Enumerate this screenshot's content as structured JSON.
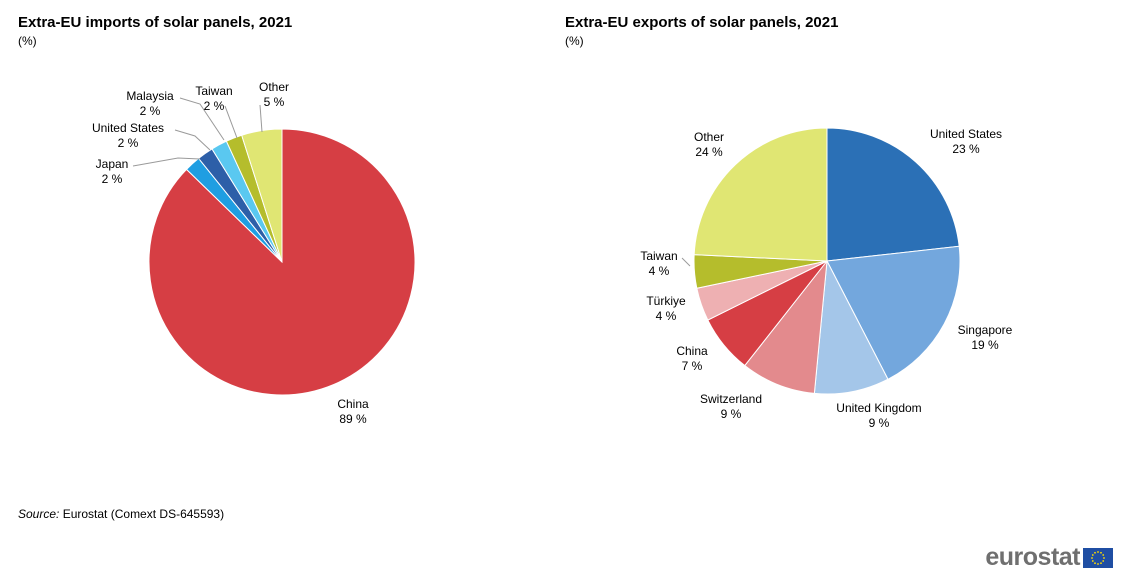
{
  "chart_data": [
    {
      "type": "pie",
      "title": "Extra-EU imports of solar panels, 2021",
      "unit": "(%)",
      "slices": [
        {
          "label": "China",
          "value": 89,
          "value_label": "89 %",
          "color": "#d63e44"
        },
        {
          "label": "Japan",
          "value": 2,
          "value_label": "2 %",
          "color": "#1f9ee2"
        },
        {
          "label": "United States",
          "value": 2,
          "value_label": "2 %",
          "color": "#2d5fa8"
        },
        {
          "label": "Malaysia",
          "value": 2,
          "value_label": "2 %",
          "color": "#5ac8f0"
        },
        {
          "label": "Taiwan",
          "value": 2,
          "value_label": "2 %",
          "color": "#b5bd2c"
        },
        {
          "label": "Other",
          "value": 5,
          "value_label": "5 %",
          "color": "#e0e673"
        }
      ]
    },
    {
      "type": "pie",
      "title": "Extra-EU exports of solar panels, 2021",
      "unit": "(%)",
      "slices": [
        {
          "label": "United States",
          "value": 23,
          "value_label": "23 %",
          "color": "#2b70b6"
        },
        {
          "label": "Singapore",
          "value": 19,
          "value_label": "19 %",
          "color": "#73a7dd"
        },
        {
          "label": "United Kingdom",
          "value": 9,
          "value_label": "9 %",
          "color": "#a4c6e9"
        },
        {
          "label": "Switzerland",
          "value": 9,
          "value_label": "9 %",
          "color": "#e38a8d"
        },
        {
          "label": "China",
          "value": 7,
          "value_label": "7 %",
          "color": "#d63e44"
        },
        {
          "label": "Türkiye",
          "value": 4,
          "value_label": "4 %",
          "color": "#eeb0b2"
        },
        {
          "label": "Taiwan",
          "value": 4,
          "value_label": "4 %",
          "color": "#b5bd2c"
        },
        {
          "label": "Other",
          "value": 24,
          "value_label": "24 %",
          "color": "#e0e673"
        }
      ]
    }
  ],
  "source": {
    "label": "Source:",
    "text": "Eurostat (Comext DS-645593)"
  },
  "logo": {
    "text": "eurostat"
  }
}
